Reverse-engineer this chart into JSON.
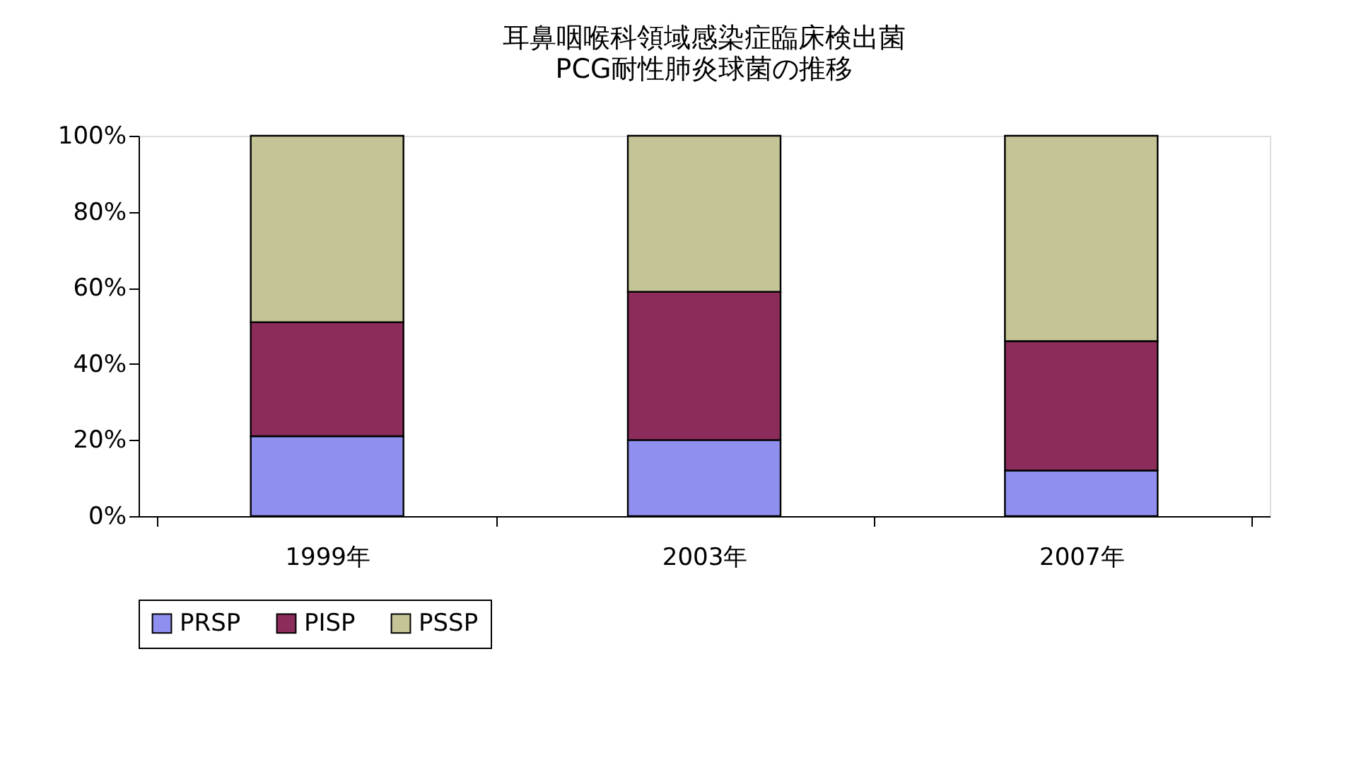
{
  "chart_data": {
    "type": "bar",
    "stacked": true,
    "title": "耳鼻咽喉科領域感染症臨床検出菌",
    "subtitle": "PCG耐性肺炎球菌の推移",
    "categories": [
      "1999年",
      "2003年",
      "2007年"
    ],
    "series": [
      {
        "name": "PRSP",
        "color": "#8f8fef",
        "values": [
          21,
          20,
          12
        ]
      },
      {
        "name": "PISP",
        "color": "#8b2c5a",
        "values": [
          30,
          39,
          34
        ]
      },
      {
        "name": "PSSP",
        "color": "#c4c496",
        "values": [
          49,
          41,
          54
        ]
      }
    ],
    "ylim": [
      0,
      100
    ],
    "yticks": [
      {
        "value": 0,
        "label": "0%"
      },
      {
        "value": 20,
        "label": "20%"
      },
      {
        "value": 40,
        "label": "40%"
      },
      {
        "value": 60,
        "label": "60%"
      },
      {
        "value": 80,
        "label": "80%"
      },
      {
        "value": 100,
        "label": "100%"
      }
    ],
    "grid": false,
    "legend": "bottom"
  }
}
